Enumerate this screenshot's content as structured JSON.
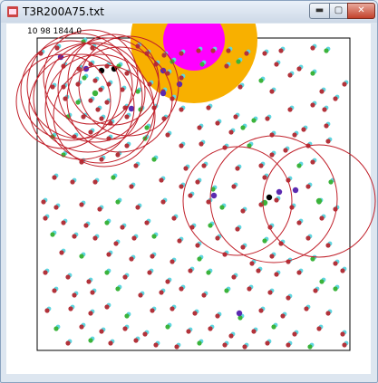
{
  "window": {
    "title": "T3R200A75.txt",
    "icon": "java-app-icon",
    "controls": [
      {
        "name": "minimize-button",
        "glyph": "▬"
      },
      {
        "name": "maximize-button",
        "glyph": "▢"
      },
      {
        "name": "close-button",
        "glyph": "✕"
      }
    ]
  },
  "canvas": {
    "status_text": "10   98   1844.0",
    "colors": {
      "background": "#ffffff",
      "border": "#000000",
      "circle": "#c0202a",
      "cyan": "#5fd6e0",
      "red_node": "#b2323a",
      "green_node": "#3bb33b",
      "purple_node": "#5a2ab0",
      "black_node": "#000000",
      "orange_target": "#f8b000",
      "magenta_target": "#ff00ff"
    }
  }
}
